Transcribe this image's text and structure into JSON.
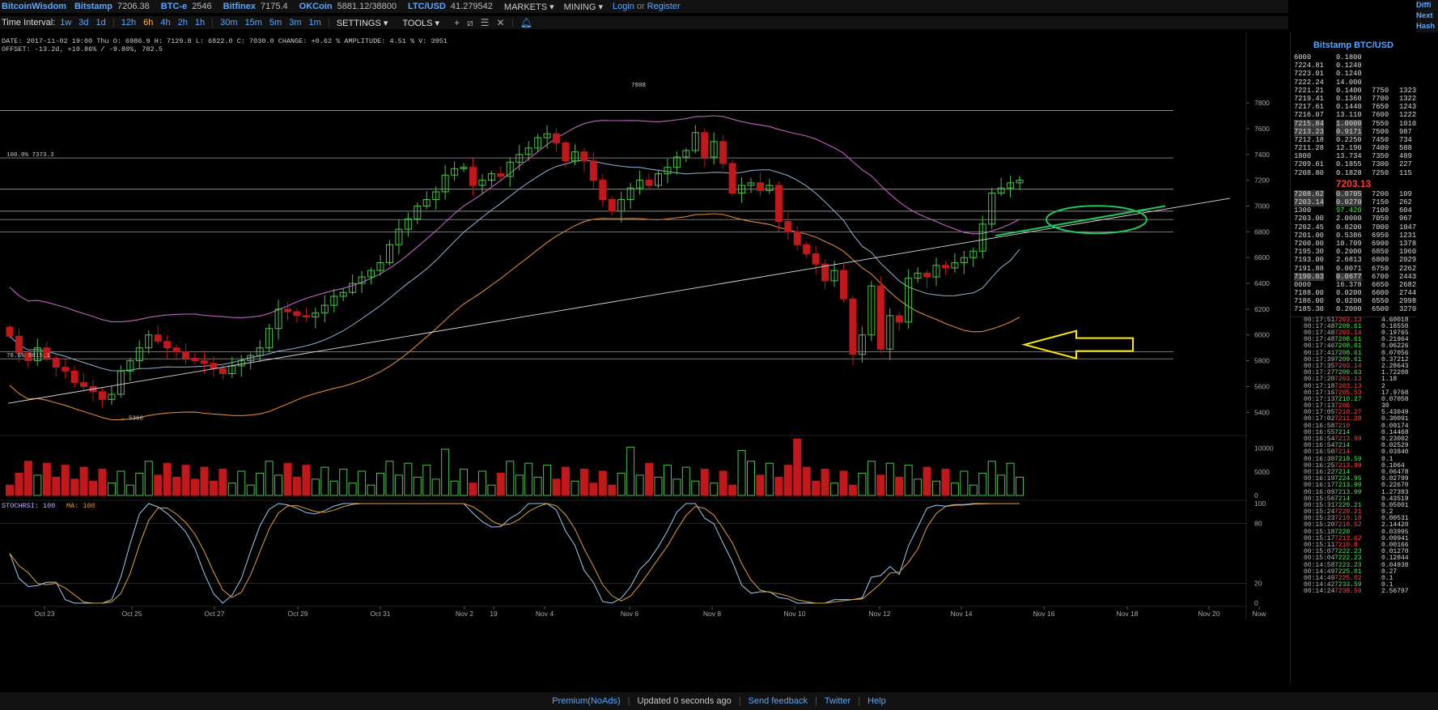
{
  "topbar": {
    "brand": "BitcoinWisdom",
    "markets": [
      {
        "name": "Bitstamp",
        "price": "7206.38"
      },
      {
        "name": "BTC-e",
        "price": "2546"
      },
      {
        "name": "Bitfinex",
        "price": "7175.4"
      },
      {
        "name": "OKCoin",
        "price": "5881.12/38800"
      },
      {
        "name": "LTC/USD",
        "price": "41.279542"
      }
    ],
    "markets_menu": "MARKETS ▾",
    "mining_menu": "MINING ▾",
    "login": "Login",
    "or": "or",
    "register": "Register"
  },
  "right_corner": [
    "Diffi",
    "Next",
    "Hash"
  ],
  "intervals": {
    "label": "Time Interval:",
    "items": [
      "1w",
      "3d",
      "1d",
      "12h",
      "6h",
      "4h",
      "2h",
      "1h",
      "30m",
      "15m",
      "5m",
      "3m",
      "1m"
    ],
    "active": "6h",
    "settings": "SETTINGS ▾",
    "tools": "TOOLS ▾"
  },
  "info": {
    "line1": "DATE: 2017-11-02 19:00 Thu   O: 6986.9   H: 7129.8   L: 6822.0   C: 7030.0   CHANGE: +0.62 %   AMPLITUDE: 4.51 %   V: 3951",
    "line2": "OFFSET: -13.2d, +10.86% / -9.80%, 782.5"
  },
  "chart_data": [
    {
      "type": "candlestick",
      "title": "",
      "y_ticks": [
        5400,
        5600,
        5800,
        6000,
        6200,
        6400,
        6600,
        6800,
        7000,
        7200,
        7400,
        7600,
        7800
      ],
      "ylim": [
        5270,
        7970
      ],
      "x_ticks": [
        "Oct 23",
        "Oct 25",
        "Oct 27",
        "Oct 29",
        "Oct 31",
        "Nov 2",
        "19",
        "Nov 4",
        "Nov 6",
        "Nov 8",
        "Nov 10",
        "Nov 12",
        "Nov 14",
        "Nov 16",
        "Nov 18",
        "Nov 20",
        "Now"
      ],
      "annotations": [
        {
          "text": "7888",
          "value": 7888
        },
        {
          "text": "← 5366",
          "value": 5366
        },
        {
          "text": "100.0% 7373.3",
          "value": 7373.3
        },
        {
          "text": "78.6% 5815.1",
          "value": 5815.1
        }
      ],
      "fib_levels": [
        7740,
        7373,
        7130,
        6960,
        6895,
        6800,
        5870,
        5815
      ],
      "close": [
        5990,
        5860,
        5800,
        5900,
        5820,
        5750,
        5720,
        5630,
        5600,
        5560,
        5500,
        5540,
        5720,
        5800,
        5900,
        6000,
        5950,
        5900,
        5870,
        5820,
        5800,
        5780,
        5740,
        5700,
        5760,
        5800,
        5840,
        5900,
        6050,
        6200,
        6180,
        6150,
        6140,
        6170,
        6230,
        6300,
        6330,
        6400,
        6450,
        6500,
        6560,
        6700,
        6820,
        6900,
        7000,
        7050,
        7110,
        7240,
        7290,
        7300,
        7160,
        7200,
        7250,
        7230,
        7340,
        7400,
        7450,
        7530,
        7560,
        7490,
        7350,
        7420,
        7350,
        7200,
        7050,
        6960,
        7050,
        7140,
        7200,
        7160,
        7250,
        7300,
        7380,
        7430,
        7570,
        7380,
        7500,
        7330,
        7100,
        7160,
        7180,
        7120,
        7160,
        6880,
        6800,
        6700,
        6630,
        6550,
        6420,
        6500,
        6280,
        5850,
        6000,
        6380,
        5890,
        6150,
        6100,
        6440,
        6480,
        6450,
        6540,
        6520,
        6560,
        6600,
        6650,
        6860,
        7100,
        7140,
        7180,
        7200
      ],
      "volume_ylim": [
        0,
        12000
      ],
      "volume_ticks": [
        0,
        5000,
        10000
      ]
    },
    {
      "type": "line",
      "title": "STOCHRSI",
      "series": [
        {
          "name": "STOCHRSI",
          "last": 100
        },
        {
          "name": "MA",
          "last": 100
        }
      ],
      "y_ticks": [
        0,
        20,
        80,
        100
      ],
      "ylim": [
        0,
        100
      ]
    }
  ],
  "stoch_label": "STOCHRSI: 100",
  "ma_label": "MA: 100",
  "book": {
    "title": "Bitstamp BTC/USD",
    "asks": [
      [
        "6000",
        "0.1800",
        "",
        ""
      ],
      [
        "7224.81",
        "0.1240",
        "",
        ""
      ],
      [
        "7223.01",
        "0.1240",
        "",
        ""
      ],
      [
        "7222.24",
        "14.000",
        "",
        ""
      ],
      [
        "7221.21",
        "0.1400",
        "7750",
        "1323"
      ],
      [
        "7219.41",
        "0.1360",
        "7700",
        "1322"
      ],
      [
        "7217.61",
        "0.1440",
        "7650",
        "1243"
      ],
      [
        "7216.07",
        "13.110",
        "7600",
        "1222"
      ],
      [
        "7215.84",
        "1.0000",
        "7550",
        "1010"
      ],
      [
        "7213.23",
        "0.9171",
        "7500",
        "987"
      ],
      [
        "7212.18",
        "0.2250",
        "7450",
        "734"
      ],
      [
        "7211.28",
        "12.190",
        "7400",
        "588"
      ],
      [
        "1800",
        "13.734",
        "7350",
        "489"
      ],
      [
        "7209.61",
        "0.1855",
        "7300",
        "227"
      ],
      [
        "7208.80",
        "0.1828",
        "7250",
        "115"
      ]
    ],
    "last_price": "7203.13",
    "bids": [
      [
        "7208.62",
        "0.0705",
        "7200",
        "109"
      ],
      [
        "7203.14",
        "0.0270",
        "7150",
        "262"
      ],
      [
        "1300",
        "97.420",
        "7100",
        "604"
      ],
      [
        "7203.00",
        "2.0000",
        "7050",
        "967"
      ],
      [
        "7202.45",
        "0.0200",
        "7000",
        "1047"
      ],
      [
        "7201.00",
        "0.5386",
        "6950",
        "1231"
      ],
      [
        "7200.00",
        "10.709",
        "6900",
        "1378"
      ],
      [
        "7195.30",
        "0.2000",
        "6850",
        "1960"
      ],
      [
        "7193.00",
        "2.6813",
        "6800",
        "2029"
      ],
      [
        "7191.88",
        "0.0071",
        "6750",
        "2262"
      ],
      [
        "7190.03",
        "0.0677",
        "6700",
        "2443"
      ],
      [
        "0000",
        "16.378",
        "6650",
        "2682"
      ],
      [
        "7188.00",
        "0.0200",
        "6600",
        "2744"
      ],
      [
        "7186.00",
        "0.0200",
        "6550",
        "2998"
      ],
      [
        "7185.30",
        "0.2000",
        "6500",
        "3270"
      ]
    ],
    "trades": [
      [
        "00:17:51",
        "7203.13",
        "4.60018",
        "dn"
      ],
      [
        "00:17:48",
        "7209.61",
        "0.18550",
        "up"
      ],
      [
        "00:17:48",
        "7203.14",
        "0.19765",
        "dn"
      ],
      [
        "00:17:48",
        "7208.61",
        "0.21964",
        "up"
      ],
      [
        "00:17:46",
        "7208.61",
        "0.06226",
        "up"
      ],
      [
        "00:17:41",
        "7208.61",
        "0.07056",
        "up"
      ],
      [
        "00:17:39",
        "7209.61",
        "0.37212",
        "up"
      ],
      [
        "00:17:35",
        "7203.14",
        "2.28643",
        "dn"
      ],
      [
        "00:17:27",
        "7209.63",
        "1.72208",
        "up"
      ],
      [
        "00:17:20",
        "7203.13",
        "1.18",
        "dn"
      ],
      [
        "00:17:18",
        "7203.13",
        "2",
        "dn"
      ],
      [
        "00:17:16",
        "7205.53",
        "17.9768",
        "dn"
      ],
      [
        "00:17:13",
        "7210.27",
        "0.07058",
        "up"
      ],
      [
        "00:17:13",
        "7206",
        "30",
        "dn"
      ],
      [
        "00:17:05",
        "7210.27",
        "5.43049",
        "dn"
      ],
      [
        "00:17:02",
        "7211.28",
        "0.30091",
        "dn"
      ],
      [
        "00:16:58",
        "7210",
        "0.09174",
        "dn"
      ],
      [
        "00:16:55",
        "7214",
        "0.14468",
        "up"
      ],
      [
        "00:16:54",
        "7213.99",
        "0.23002",
        "dn"
      ],
      [
        "00:16:54",
        "7214",
        "0.02529",
        "up"
      ],
      [
        "00:16:50",
        "7214",
        "0.03840",
        "dn"
      ],
      [
        "00:16:30",
        "7218.59",
        "0.1",
        "up"
      ],
      [
        "00:16:25",
        "7213.99",
        "0.1064",
        "dn"
      ],
      [
        "00:16:22",
        "7214",
        "0.06478",
        "up"
      ],
      [
        "00:16:19",
        "7224.95",
        "0.02799",
        "up"
      ],
      [
        "00:16:17",
        "7213.99",
        "0.22670",
        "up"
      ],
      [
        "00:16:09",
        "7213.99",
        "1.27393",
        "up"
      ],
      [
        "00:15:56",
        "7214",
        "0.43519",
        "up"
      ],
      [
        "00:15:31",
        "7220.21",
        "0.05001",
        "up"
      ],
      [
        "00:15:24",
        "7220.21",
        "0.2",
        "dn"
      ],
      [
        "00:15:23",
        "7210.18",
        "0.00531",
        "dn"
      ],
      [
        "00:15:20",
        "7210.52",
        "2.14420",
        "dn"
      ],
      [
        "00:15:18",
        "7220",
        "0.03995",
        "up"
      ],
      [
        "00:15:17",
        "7213.62",
        "0.09941",
        "dn"
      ],
      [
        "00:15:11",
        "7210.8",
        "0.00166",
        "dn"
      ],
      [
        "00:15:07",
        "7222.23",
        "0.01270",
        "up"
      ],
      [
        "00:15:04",
        "7222.23",
        "0.12844",
        "up"
      ],
      [
        "00:14:58",
        "7223.23",
        "0.04938",
        "up"
      ],
      [
        "00:14:49",
        "7225.01",
        "0.27",
        "up"
      ],
      [
        "00:14:49",
        "7225.02",
        "0.1",
        "dn"
      ],
      [
        "00:14:42",
        "7233.59",
        "0.1",
        "up"
      ],
      [
        "00:14:24",
        "7238.59",
        "2.56797",
        "dn"
      ]
    ]
  },
  "footer": {
    "premium": "Premium(NoAds)",
    "updated": "Updated 0 seconds ago",
    "feedback": "Send feedback",
    "twitter": "Twitter",
    "help": "Help"
  },
  "colors": {
    "up": "#4fc24f",
    "down": "#c2181b",
    "accent": "#5aa7ff",
    "bb": "#c064c0",
    "ma_slow": "#d8893a",
    "ma_fast": "#8fb4d8",
    "highlight_green": "#22c55e",
    "highlight_yellow": "#ffee00"
  }
}
